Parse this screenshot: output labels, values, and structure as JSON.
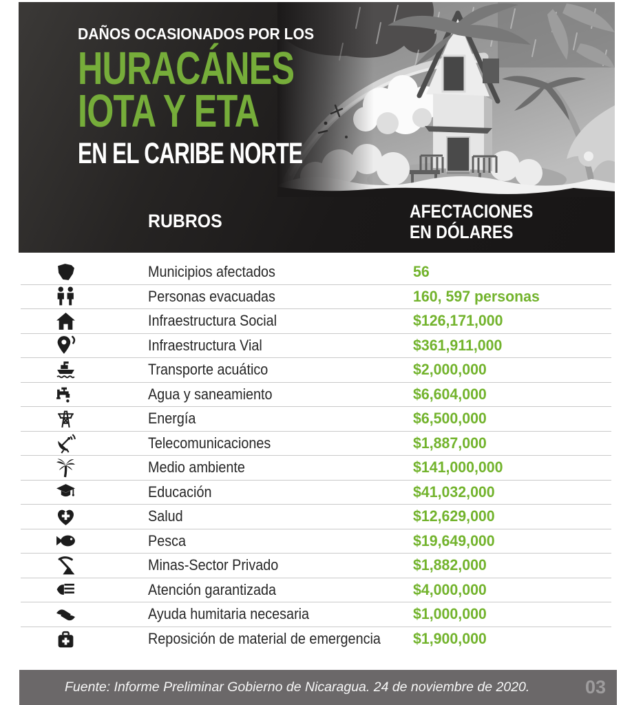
{
  "colors": {
    "title_green": "#76ad3a",
    "value_green": "#72b32c",
    "band_dark": "#1a1818",
    "footer_gray": "#6b6869",
    "page_number_gray": "#9e9c9d",
    "separator_gray": "#c9c9c9"
  },
  "header": {
    "kicker": "DAÑOS OCASIONADOS POR LOS",
    "title_line1": "HURACÁNES",
    "title_line2": "IOTA Y ETA",
    "subtitle": "EN EL CARIBE NORTE"
  },
  "columns": {
    "rubros": "RUBROS",
    "afectaciones_line1": "AFECTACIONES",
    "afectaciones_line2": "EN DÓLARES"
  },
  "chart_data": {
    "type": "table",
    "title": "Daños ocasionados por los huracánes Iota y Eta en el Caribe Norte",
    "columns": [
      "RUBROS",
      "AFECTACIONES EN DÓLARES"
    ],
    "rows": [
      {
        "icon": "nicaragua-map-icon",
        "label": "Municipios afectados",
        "value": "56"
      },
      {
        "icon": "people-icon",
        "label": "Personas evacuadas",
        "value": "160, 597 personas"
      },
      {
        "icon": "house-icon",
        "label": "Infraestructura Social",
        "value": "$126,171,000"
      },
      {
        "icon": "map-pin-icon",
        "label": "Infraestructura Vial",
        "value": "$361,911,000"
      },
      {
        "icon": "ship-icon",
        "label": "Transporte acuático",
        "value": "$2,000,000"
      },
      {
        "icon": "faucet-icon",
        "label": "Agua y saneamiento",
        "value": "$6,604,000"
      },
      {
        "icon": "power-tower-icon",
        "label": "Energía",
        "value": "$6,500,000"
      },
      {
        "icon": "satellite-dish-icon",
        "label": "Telecomunicaciones",
        "value": "$1,887,000"
      },
      {
        "icon": "palm-tree-icon",
        "label": "Medio ambiente",
        "value": "$141,000,000"
      },
      {
        "icon": "graduation-cap-icon",
        "label": "Educación",
        "value": "$41,032,000"
      },
      {
        "icon": "heart-cross-icon",
        "label": "Salud",
        "value": "$12,629,000"
      },
      {
        "icon": "fish-icon",
        "label": "Pesca",
        "value": "$19,649,000"
      },
      {
        "icon": "mining-icon",
        "label": "Minas-Sector Privado",
        "value": "$1,882,000"
      },
      {
        "icon": "money-hand-icon",
        "label": "Atención garantizada",
        "value": "$4,000,000"
      },
      {
        "icon": "helping-hands-icon",
        "label": "Ayuda humitaria necesaria",
        "value": "$1,000,000"
      },
      {
        "icon": "first-aid-icon",
        "label": "Reposición de material de emergencia",
        "value": "$1,900,000"
      }
    ]
  },
  "footer": {
    "source": "Fuente: Informe Preliminar Gobierno de Nicaragua. 24 de noviembre de 2020.",
    "page_number": "03"
  }
}
